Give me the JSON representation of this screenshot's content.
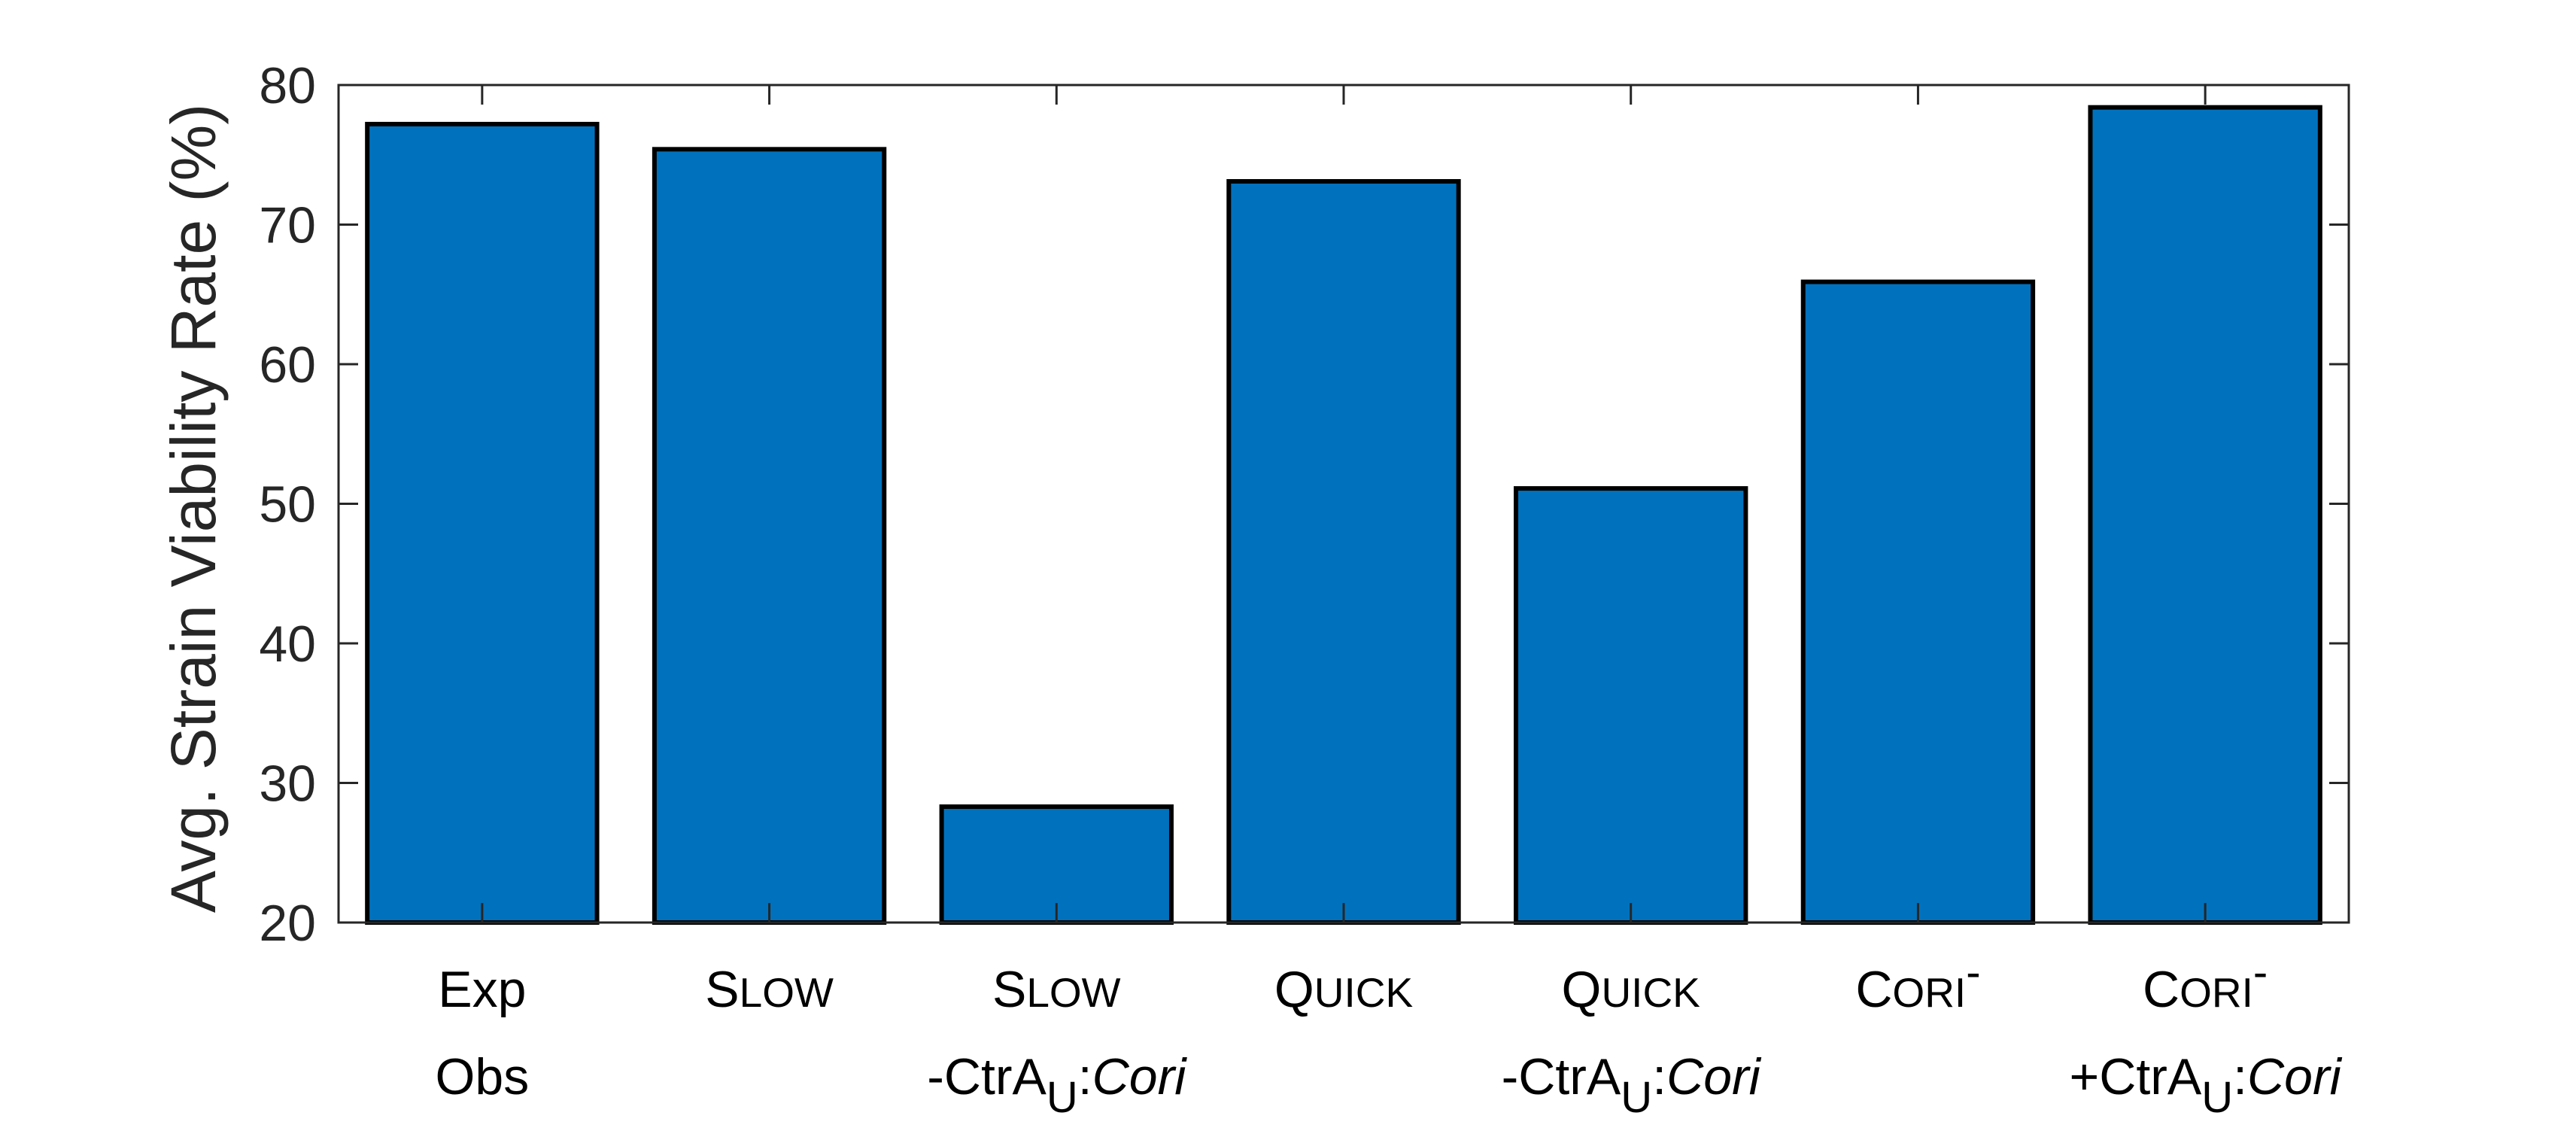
{
  "chart_data": {
    "type": "bar",
    "ylabel": "Avg. Strain Viability Rate (%)",
    "xlabel": "",
    "ylim": [
      20,
      80
    ],
    "yticks": [
      20,
      30,
      40,
      50,
      60,
      70,
      80
    ],
    "grid": false,
    "bar_color": "#0072BD",
    "edge_color": "#000000",
    "categories": [
      "Exp Obs",
      "Slow",
      "Slow -CtrAU:Cori",
      "Quick",
      "Quick -CtrAU:Cori",
      "Cori-",
      "Cori- +CtrAU:Cori"
    ],
    "category_labels": [
      {
        "lines": [
          [
            {
              "t": "Exp"
            }
          ],
          [
            {
              "t": "Obs"
            }
          ]
        ]
      },
      {
        "lines": [
          [
            {
              "t": "S"
            },
            {
              "t": "LOW",
              "sc": true
            }
          ]
        ]
      },
      {
        "lines": [
          [
            {
              "t": "S"
            },
            {
              "t": "LOW",
              "sc": true
            }
          ],
          [
            {
              "t": "-CtrA"
            },
            {
              "t": "U",
              "sub": true
            },
            {
              "t": ":"
            },
            {
              "t": "Cori",
              "it": true
            }
          ]
        ]
      },
      {
        "lines": [
          [
            {
              "t": "Q"
            },
            {
              "t": "UICK",
              "sc": true
            }
          ]
        ]
      },
      {
        "lines": [
          [
            {
              "t": "Q"
            },
            {
              "t": "UICK",
              "sc": true
            }
          ],
          [
            {
              "t": "-CtrA"
            },
            {
              "t": "U",
              "sub": true
            },
            {
              "t": ":"
            },
            {
              "t": "Cori",
              "it": true
            }
          ]
        ]
      },
      {
        "lines": [
          [
            {
              "t": "C"
            },
            {
              "t": "ORI",
              "sc": true
            },
            {
              "t": "-",
              "sup": true
            }
          ]
        ]
      },
      {
        "lines": [
          [
            {
              "t": "C"
            },
            {
              "t": "ORI",
              "sc": true
            },
            {
              "t": "-",
              "sup": true
            }
          ],
          [
            {
              "t": "+CtrA"
            },
            {
              "t": "U",
              "sub": true
            },
            {
              "t": ":"
            },
            {
              "t": "Cori",
              "it": true
            }
          ]
        ]
      }
    ],
    "values": [
      77.2,
      75.4,
      28.3,
      73.1,
      51.1,
      65.9,
      78.4
    ]
  }
}
